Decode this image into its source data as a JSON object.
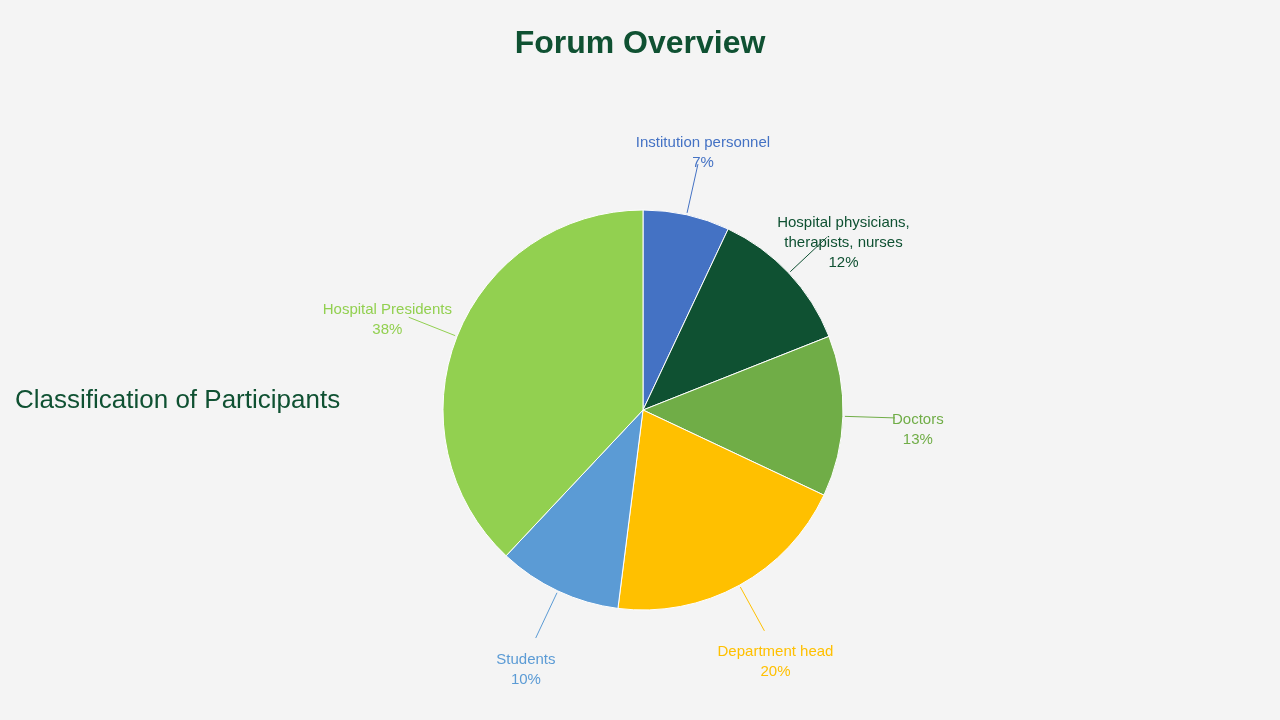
{
  "chart_data": {
    "type": "pie",
    "title": "Forum Overview",
    "subtitle": "Classification of Participants",
    "categories": [
      "Institution personnel",
      "Hospital physicians, therapists, nurses",
      "Doctors",
      "Department head",
      "Students",
      "Hospital Presidents"
    ],
    "values": [
      7,
      12,
      13,
      20,
      10,
      38
    ],
    "value_labels": [
      "7%",
      "12%",
      "13%",
      "20%",
      "10%",
      "38%"
    ],
    "colors": [
      "#4472c4",
      "#0f5132",
      "#70ad47",
      "#ffc000",
      "#5b9bd5",
      "#92d050"
    ],
    "legend": false
  }
}
